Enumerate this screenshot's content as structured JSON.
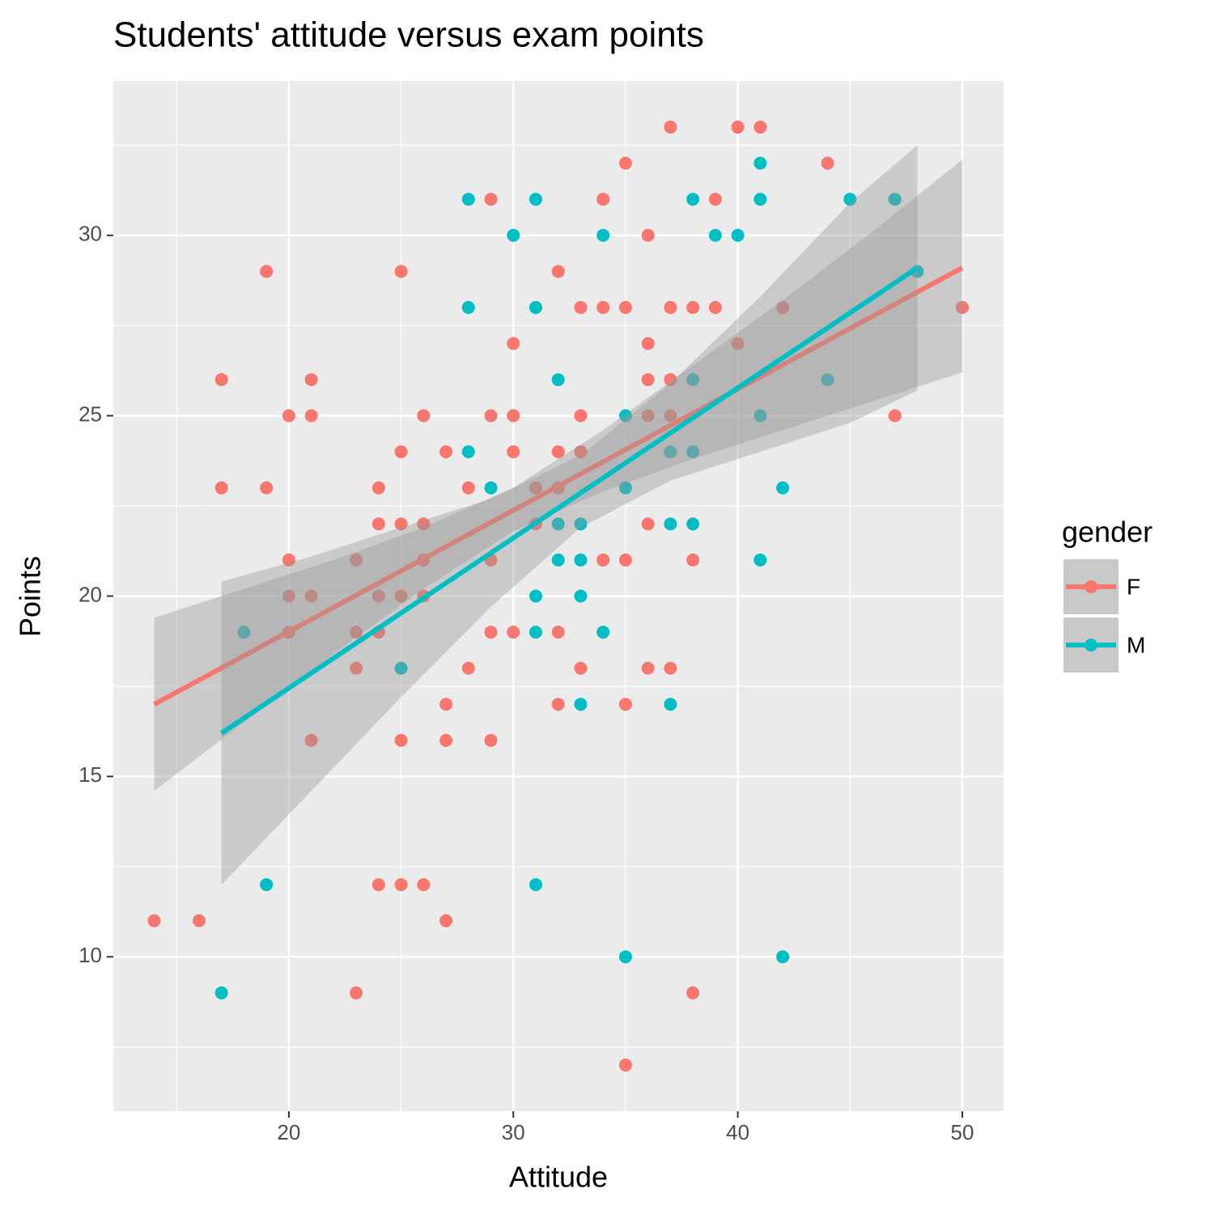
{
  "chart_data": {
    "type": "scatter",
    "title": "Students' attitude versus exam points",
    "x_label": "Attitude",
    "y_label": "Points",
    "legend_title": "gender",
    "xlim": [
      12.18,
      51.84
    ],
    "ylim": [
      5.72,
      34.28
    ],
    "xticks": [
      20,
      30,
      40,
      50
    ],
    "yticks": [
      10,
      15,
      20,
      25,
      30
    ],
    "grid": true,
    "minor_grid": true,
    "legend_position": "right",
    "band_color": "#999999",
    "series": [
      {
        "name": "F",
        "color": "#F8766D",
        "x": [
          37,
          40,
          41,
          35,
          44,
          29,
          34,
          39,
          36,
          19,
          25,
          32,
          33,
          34,
          35,
          37,
          38,
          39,
          42,
          50,
          30,
          36,
          40,
          17,
          21,
          36,
          37,
          20,
          21,
          26,
          29,
          30,
          33,
          36,
          37,
          47,
          25,
          27,
          30,
          32,
          33,
          17,
          19,
          24,
          28,
          31,
          32,
          24,
          25,
          26,
          36,
          31,
          20,
          23,
          26,
          29,
          34,
          35,
          38,
          20,
          21,
          24,
          25,
          26,
          20,
          23,
          24,
          29,
          30,
          32,
          23,
          28,
          33,
          36,
          37,
          27,
          32,
          35,
          21,
          25,
          27,
          29,
          24,
          25,
          26,
          14,
          16,
          27,
          23,
          38,
          35
        ],
        "values": [
          33,
          33,
          33,
          32,
          32,
          31,
          31,
          31,
          30,
          29,
          29,
          29,
          28,
          28,
          28,
          28,
          28,
          28,
          28,
          28,
          27,
          27,
          27,
          26,
          26,
          26,
          26,
          25,
          25,
          25,
          25,
          25,
          25,
          25,
          25,
          25,
          24,
          24,
          24,
          24,
          24,
          23,
          23,
          23,
          23,
          23,
          23,
          22,
          22,
          22,
          22,
          22,
          21,
          21,
          21,
          21,
          21,
          21,
          21,
          20,
          20,
          20,
          20,
          20,
          19,
          19,
          19,
          19,
          19,
          19,
          18,
          18,
          18,
          18,
          18,
          17,
          17,
          17,
          16,
          16,
          16,
          16,
          12,
          12,
          12,
          11,
          11,
          11,
          9,
          9,
          7
        ],
        "fit": {
          "x": [
            14,
            50
          ],
          "values": [
            17.0,
            29.1
          ]
        },
        "band": {
          "x": [
            14,
            18,
            22,
            26,
            30,
            34,
            38,
            42,
            46,
            50
          ],
          "lower": [
            14.6,
            16.5,
            18.4,
            20.2,
            21.8,
            22.9,
            23.8,
            24.6,
            25.4,
            26.2
          ],
          "upper": [
            19.4,
            20.2,
            21.0,
            21.9,
            23.0,
            24.6,
            26.4,
            28.2,
            30.1,
            32.1
          ]
        }
      },
      {
        "name": "M",
        "color": "#00BFC4",
        "x": [
          41,
          28,
          31,
          38,
          41,
          45,
          47,
          30,
          34,
          39,
          40,
          48,
          28,
          31,
          32,
          38,
          44,
          35,
          41,
          28,
          37,
          38,
          29,
          35,
          42,
          32,
          33,
          37,
          38,
          32,
          33,
          41,
          31,
          33,
          18,
          31,
          34,
          25,
          33,
          37,
          19,
          31,
          35,
          42,
          17
        ],
        "values": [
          32,
          31,
          31,
          31,
          31,
          31,
          31,
          30,
          30,
          30,
          30,
          29,
          28,
          28,
          26,
          26,
          26,
          25,
          25,
          24,
          24,
          24,
          23,
          23,
          23,
          22,
          22,
          22,
          22,
          21,
          21,
          21,
          20,
          20,
          19,
          19,
          19,
          18,
          17,
          17,
          12,
          12,
          10,
          10,
          9
        ],
        "fit": {
          "x": [
            17,
            48
          ],
          "values": [
            16.2,
            29.1
          ]
        },
        "band": {
          "x": [
            17,
            21,
            25,
            29,
            33,
            37,
            41,
            45,
            48
          ],
          "lower": [
            12.0,
            14.6,
            17.2,
            19.7,
            21.9,
            23.2,
            24.0,
            24.8,
            25.7
          ],
          "upper": [
            20.4,
            21.1,
            21.9,
            22.7,
            23.9,
            25.9,
            28.3,
            30.9,
            32.5
          ]
        }
      }
    ]
  }
}
